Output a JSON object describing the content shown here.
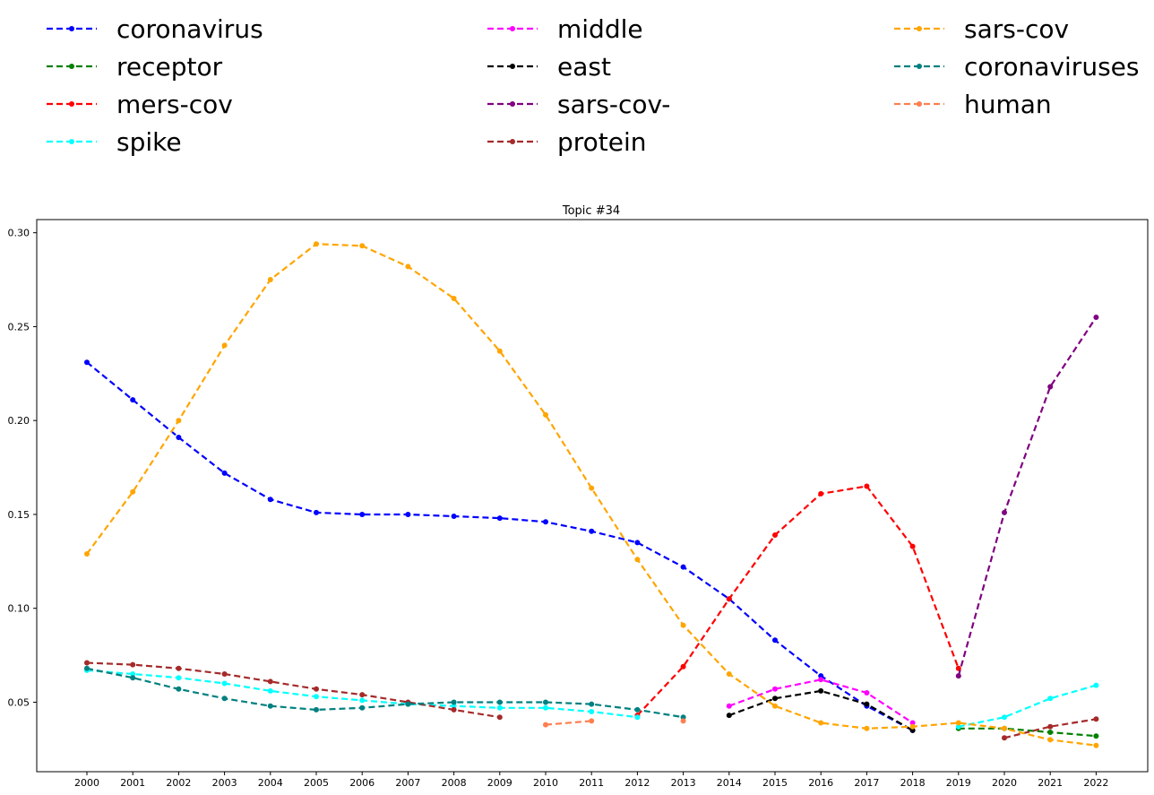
{
  "chart_data": {
    "type": "line",
    "title": "Topic #34",
    "xlabel": "",
    "ylabel": "",
    "x": [
      "2000",
      "2001",
      "2002",
      "2003",
      "2004",
      "2005",
      "2006",
      "2007",
      "2008",
      "2009",
      "2010",
      "2011",
      "2012",
      "2013",
      "2014",
      "2015",
      "2016",
      "2017",
      "2018",
      "2019",
      "2020",
      "2021",
      "2022"
    ],
    "yticks": [
      "0.05",
      "0.10",
      "0.15",
      "0.20",
      "0.25",
      "0.30"
    ],
    "ylim": [
      0.013,
      0.307
    ],
    "grid": false,
    "legend_position": "top",
    "series": [
      {
        "name": "coronavirus",
        "color": "#0000ff",
        "values": [
          0.231,
          0.211,
          0.191,
          0.172,
          0.158,
          0.151,
          0.15,
          0.15,
          0.149,
          0.148,
          0.146,
          0.141,
          0.135,
          0.122,
          0.105,
          0.083,
          0.064,
          0.048,
          0.035,
          null,
          null,
          null,
          null
        ]
      },
      {
        "name": "receptor",
        "color": "#008000",
        "values": [
          null,
          null,
          null,
          null,
          null,
          null,
          null,
          null,
          null,
          null,
          null,
          null,
          null,
          null,
          null,
          null,
          null,
          null,
          null,
          0.036,
          0.036,
          0.034,
          0.032
        ]
      },
      {
        "name": "mers-cov",
        "color": "#ff0000",
        "values": [
          null,
          null,
          null,
          null,
          null,
          null,
          null,
          null,
          null,
          null,
          null,
          null,
          0.043,
          0.069,
          0.105,
          0.139,
          0.161,
          0.165,
          0.133,
          0.068,
          null,
          null,
          null
        ]
      },
      {
        "name": "spike",
        "color": "#00ffff",
        "values": [
          0.067,
          0.065,
          0.063,
          0.06,
          0.056,
          0.053,
          0.051,
          0.049,
          0.048,
          0.047,
          0.047,
          0.045,
          0.042,
          null,
          null,
          null,
          null,
          null,
          null,
          0.037,
          0.042,
          0.052,
          0.059
        ]
      },
      {
        "name": "middle",
        "color": "#ff00ff",
        "values": [
          null,
          null,
          null,
          null,
          null,
          null,
          null,
          null,
          null,
          null,
          null,
          null,
          null,
          null,
          0.048,
          0.057,
          0.062,
          0.055,
          0.039,
          null,
          null,
          null,
          null
        ]
      },
      {
        "name": "east",
        "color": "#000000",
        "values": [
          null,
          null,
          null,
          null,
          null,
          null,
          null,
          null,
          null,
          null,
          null,
          null,
          null,
          null,
          0.043,
          0.052,
          0.056,
          0.049,
          0.035,
          null,
          null,
          null,
          null
        ]
      },
      {
        "name": "sars-cov-",
        "color": "#800080",
        "values": [
          null,
          null,
          null,
          null,
          null,
          null,
          null,
          null,
          null,
          null,
          null,
          null,
          null,
          null,
          null,
          null,
          null,
          null,
          null,
          0.064,
          0.151,
          0.218,
          0.255
        ]
      },
      {
        "name": "protein",
        "color": "#a52a2a",
        "values": [
          0.071,
          0.07,
          0.068,
          0.065,
          0.061,
          0.057,
          0.054,
          0.05,
          0.046,
          0.042,
          null,
          null,
          null,
          null,
          null,
          null,
          null,
          null,
          null,
          null,
          0.031,
          0.037,
          0.041
        ]
      },
      {
        "name": "sars-cov",
        "color": "#ffa500",
        "values": [
          0.129,
          0.162,
          0.2,
          0.24,
          0.275,
          0.294,
          0.293,
          0.282,
          0.265,
          0.237,
          0.203,
          0.164,
          0.126,
          0.091,
          0.065,
          0.048,
          0.039,
          0.036,
          0.037,
          0.039,
          0.036,
          0.03,
          0.027
        ]
      },
      {
        "name": "coronaviruses",
        "color": "#008080",
        "values": [
          0.068,
          0.063,
          0.057,
          0.052,
          0.048,
          0.046,
          0.047,
          0.049,
          0.05,
          0.05,
          0.05,
          0.049,
          0.046,
          0.042,
          null,
          null,
          null,
          null,
          null,
          null,
          null,
          null,
          null
        ]
      },
      {
        "name": "human",
        "color": "#ff7f50",
        "values": [
          null,
          null,
          null,
          null,
          null,
          null,
          null,
          null,
          null,
          null,
          0.038,
          0.04,
          null,
          0.04,
          null,
          null,
          null,
          null,
          null,
          null,
          null,
          null,
          null
        ]
      }
    ]
  }
}
